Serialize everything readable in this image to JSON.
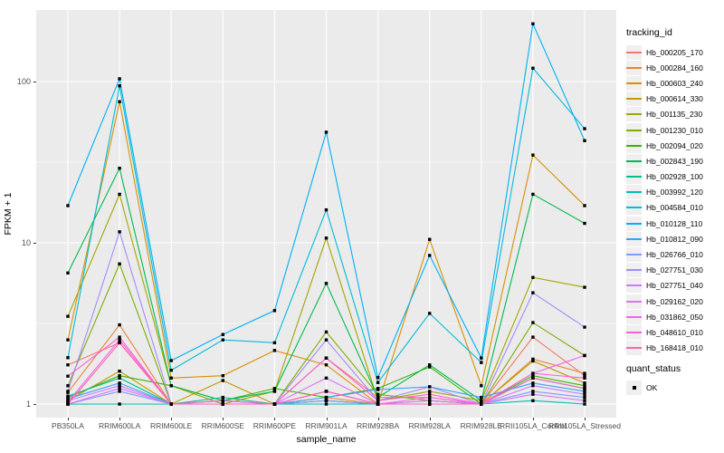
{
  "y_axis": {
    "title": "FPKM + 1",
    "tick_labels": [
      "100",
      "10",
      "1"
    ]
  },
  "x_axis": {
    "title": "sample_name"
  },
  "legend": {
    "tracking_title": "tracking_id",
    "quant_title": "quant_status",
    "quant_label": "OK"
  },
  "colors": {
    "panel_background": "#EBEBEB",
    "grid": "#FFFFFF",
    "axis_text": "#4D4D4D",
    "point": "#000000"
  },
  "chart_data": {
    "type": "line",
    "title": "",
    "xlabel": "sample_name",
    "ylabel": "FPKM + 1",
    "y_scale": "log10",
    "ylim": [
      0.95,
      260
    ],
    "y_ticks": [
      100,
      10,
      1
    ],
    "y_minor_ticks": [
      3.1623,
      31.623
    ],
    "grid": "on",
    "legend_position": "right",
    "point_shape": "filled-square",
    "point_color": "#000000",
    "quant_status": "OK",
    "categories": [
      "PB350LA",
      "RRIM600LA",
      "RRIM600LE",
      "RRIM600SE",
      "RRIM600PE",
      "RRIM901LA",
      "RRIM928BA",
      "RRIM928LA",
      "RRIM928LE",
      "RRII105LA_Control",
      "RRII105LA_Stressed"
    ],
    "series": [
      {
        "name": "Hb_000205_170",
        "color": "#F8766D",
        "values": [
          1.75,
          2.4,
          1.0,
          1.05,
          1.0,
          1.93,
          1.1,
          1.1,
          1.0,
          2.6,
          1.5
        ]
      },
      {
        "name": "Hb_000284_160",
        "color": "#EA8331",
        "values": [
          1.18,
          3.1,
          1.0,
          1.0,
          1.0,
          1.1,
          1.0,
          1.05,
          1.0,
          1.9,
          1.55
        ]
      },
      {
        "name": "Hb_000603_240",
        "color": "#D89000",
        "values": [
          2.5,
          75,
          1.45,
          1.5,
          2.15,
          1.75,
          1.0,
          10.5,
          1.3,
          35,
          17
        ]
      },
      {
        "name": "Hb_000614_330",
        "color": "#C09B00",
        "values": [
          1.05,
          1.6,
          1.0,
          1.4,
          1.0,
          1.05,
          1.0,
          1.0,
          1.0,
          1.85,
          1.35
        ]
      },
      {
        "name": "Hb_001135_230",
        "color": "#A3A500",
        "values": [
          3.5,
          20,
          1.3,
          1.0,
          1.2,
          10.7,
          1.05,
          1.2,
          1.05,
          6.1,
          5.3
        ]
      },
      {
        "name": "Hb_001230_010",
        "color": "#7CAE00",
        "values": [
          1.3,
          7.4,
          1.0,
          1.0,
          1.0,
          2.8,
          1.15,
          1.05,
          1.0,
          3.2,
          2.0
        ]
      },
      {
        "name": "Hb_002094_020",
        "color": "#39B600",
        "values": [
          1.1,
          1.5,
          1.3,
          1.05,
          1.25,
          1.1,
          1.25,
          1.7,
          1.0,
          1.5,
          1.3
        ]
      },
      {
        "name": "Hb_002843_190",
        "color": "#00BB4E",
        "values": [
          6.5,
          29,
          1.3,
          1.05,
          1.2,
          5.6,
          1.1,
          1.75,
          1.05,
          20,
          13.2
        ]
      },
      {
        "name": "Hb_002928_100",
        "color": "#00C087",
        "values": [
          1.12,
          1.45,
          1.0,
          1.1,
          1.0,
          1.05,
          1.0,
          1.0,
          1.0,
          1.45,
          1.25
        ]
      },
      {
        "name": "Hb_003992_120",
        "color": "#00C0B2",
        "values": [
          1.0,
          1.0,
          1.0,
          1.0,
          1.0,
          1.0,
          1.0,
          1.0,
          1.0,
          1.05,
          1.0
        ]
      },
      {
        "name": "Hb_004584_010",
        "color": "#00BCD8",
        "values": [
          1.94,
          94,
          1.62,
          2.5,
          2.4,
          16,
          1.36,
          3.65,
          1.81,
          121,
          51
        ]
      },
      {
        "name": "Hb_010128_110",
        "color": "#00B0F6",
        "values": [
          17,
          104,
          1.86,
          2.7,
          3.8,
          48.5,
          1.46,
          8.35,
          1.93,
          228,
          43
        ]
      },
      {
        "name": "Hb_010812_090",
        "color": "#35A2FF",
        "values": [
          1.08,
          1.35,
          1.0,
          1.05,
          1.0,
          1.1,
          1.23,
          1.28,
          1.1,
          1.35,
          1.2
        ]
      },
      {
        "name": "Hb_026766_010",
        "color": "#7A9BFF",
        "values": [
          1.0,
          1.2,
          1.0,
          1.0,
          1.0,
          1.05,
          1.0,
          1.0,
          1.0,
          1.2,
          1.1
        ]
      },
      {
        "name": "Hb_027751_030",
        "color": "#A58AFF",
        "values": [
          1.2,
          11.7,
          1.0,
          1.0,
          1.0,
          2.5,
          1.05,
          1.28,
          1.0,
          4.9,
          3.0
        ]
      },
      {
        "name": "Hb_027751_040",
        "color": "#C77CFF",
        "values": [
          1.05,
          1.3,
          1.0,
          1.0,
          1.0,
          1.2,
          1.0,
          1.05,
          1.0,
          1.3,
          1.15
        ]
      },
      {
        "name": "Hb_029162_020",
        "color": "#DF70F8",
        "values": [
          1.0,
          1.25,
          1.0,
          1.0,
          1.0,
          1.45,
          1.0,
          1.0,
          1.0,
          1.15,
          1.05
        ]
      },
      {
        "name": "Hb_031862_050",
        "color": "#F265E8",
        "values": [
          1.03,
          2.5,
          1.0,
          1.0,
          1.0,
          1.2,
          1.0,
          1.1,
          1.0,
          1.55,
          2.0
        ]
      },
      {
        "name": "Hb_048610_010",
        "color": "#FC61D5",
        "values": [
          1.49,
          2.6,
          1.0,
          1.05,
          1.0,
          1.93,
          1.05,
          1.15,
          1.0,
          1.55,
          1.45
        ]
      },
      {
        "name": "Hb_168418_010",
        "color": "#FF64B0",
        "values": [
          1.0,
          2.4,
          1.0,
          1.0,
          1.0,
          1.2,
          1.0,
          1.0,
          1.0,
          1.45,
          1.25
        ]
      }
    ]
  }
}
